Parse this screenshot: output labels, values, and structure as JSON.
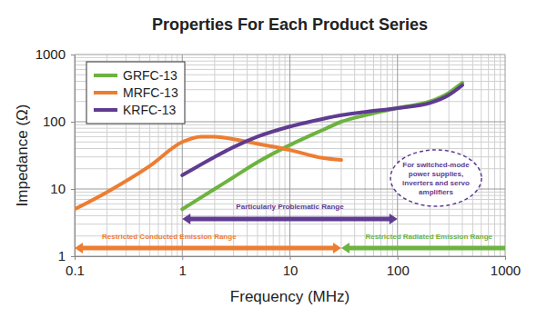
{
  "chart_data": {
    "type": "line",
    "title": "Properties For Each Product Series",
    "x_label": "Frequency (MHz)",
    "y_label": "Impedance (Ω)",
    "log": true,
    "grid": true,
    "legend": "top-left",
    "xlim": [
      0.1,
      1000
    ],
    "xticks": [
      0.1,
      1,
      10,
      100,
      1000
    ],
    "ylim": [
      1,
      1000
    ],
    "yticks": [
      1,
      10,
      100,
      1000
    ],
    "series": [
      {
        "name": "GRFC-13",
        "color": "#6db33f",
        "x": [
          1,
          2,
          3,
          5,
          10,
          20,
          30,
          50,
          100,
          200,
          300,
          400
        ],
        "values": [
          5,
          10,
          15,
          25,
          45,
          75,
          100,
          125,
          160,
          200,
          270,
          380
        ]
      },
      {
        "name": "MRFC-13",
        "color": "#ed7d31",
        "x": [
          0.1,
          0.2,
          0.5,
          1,
          1.5,
          2,
          3,
          5,
          10,
          20,
          30
        ],
        "values": [
          5,
          9,
          22,
          50,
          60,
          60,
          55,
          47,
          38,
          29,
          27
        ]
      },
      {
        "name": "KRFC-13",
        "color": "#5f3b91",
        "x": [
          1,
          2,
          3,
          5,
          10,
          20,
          30,
          50,
          100,
          200,
          300,
          400
        ],
        "values": [
          16,
          30,
          42,
          60,
          85,
          110,
          125,
          140,
          160,
          190,
          250,
          350
        ]
      }
    ],
    "annotations": [
      {
        "text": "Particularly Problematic Range",
        "x": [
          1,
          100
        ],
        "color": "#5f3b91",
        "line_style": "double-arrow"
      },
      {
        "text": "Restricted Conducted Emission Range",
        "x": [
          0.1,
          30
        ],
        "color": "#ed7d31",
        "line_style": "double-arrow"
      },
      {
        "text": "Restricted Radiated Emission Range",
        "x": [
          30,
          1000
        ],
        "color": "#6db33f",
        "line_style": "left-arrow"
      }
    ],
    "note": {
      "text": [
        "For switched-mode",
        "power supplies,",
        "inverters and servo",
        "amplifiers"
      ],
      "color": "#5f3b91",
      "line_style": "dashed"
    }
  }
}
